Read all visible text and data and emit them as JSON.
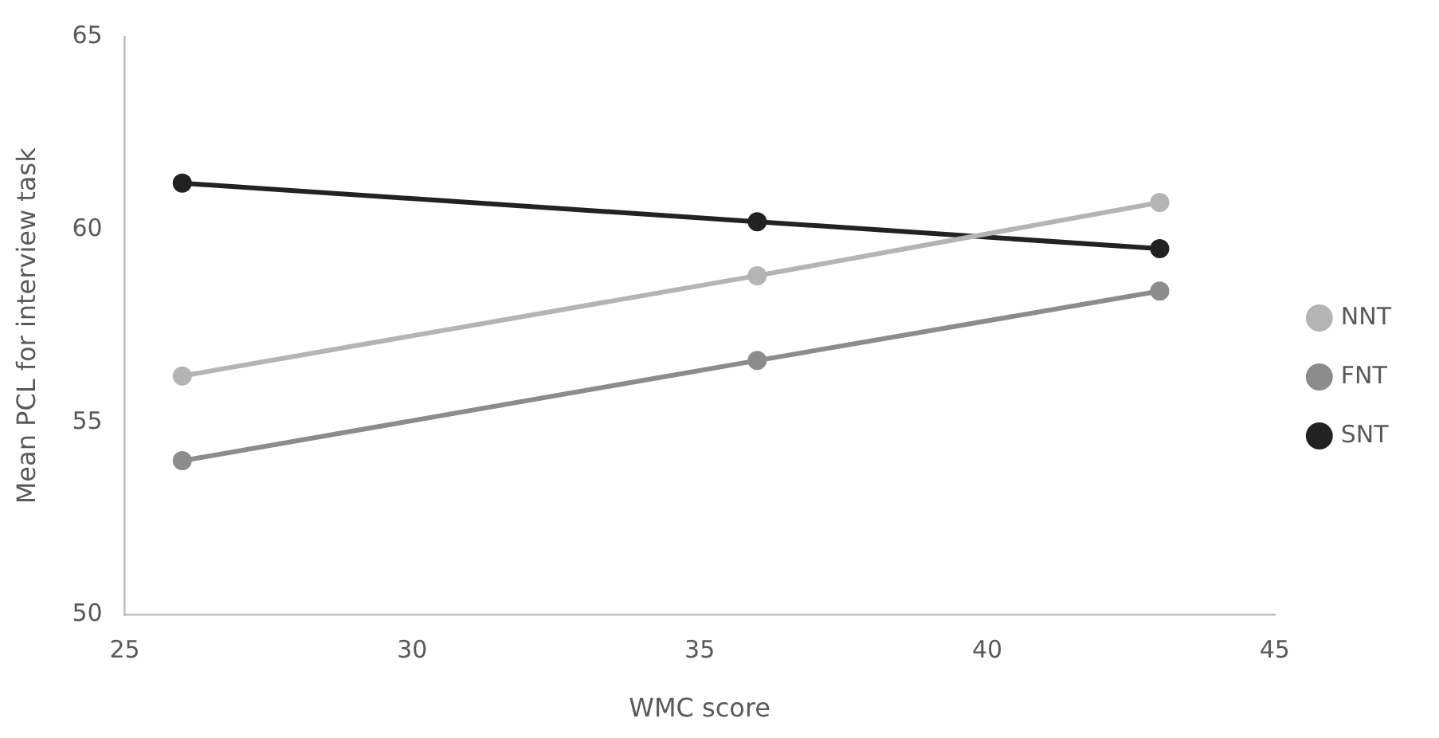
{
  "chart_data": {
    "type": "line",
    "xlabel": "WMC score",
    "ylabel": "Mean PCL for interview task",
    "x": [
      26,
      36,
      43
    ],
    "series": [
      {
        "name": "NNT",
        "color": "#b4b4b4",
        "values": [
          56.2,
          58.8,
          60.7
        ]
      },
      {
        "name": "FNT",
        "color": "#8c8c8c",
        "values": [
          54.0,
          56.6,
          58.4
        ]
      },
      {
        "name": "SNT",
        "color": "#222222",
        "values": [
          61.2,
          60.2,
          59.5
        ]
      }
    ],
    "xlim": [
      25,
      45
    ],
    "xticks": [
      25,
      30,
      35,
      40,
      45
    ],
    "ylim": [
      50,
      65
    ],
    "yticks": [
      50,
      55,
      60,
      65
    ],
    "grid": false,
    "legend": "right",
    "marker": "circle",
    "line_style": "solid"
  }
}
